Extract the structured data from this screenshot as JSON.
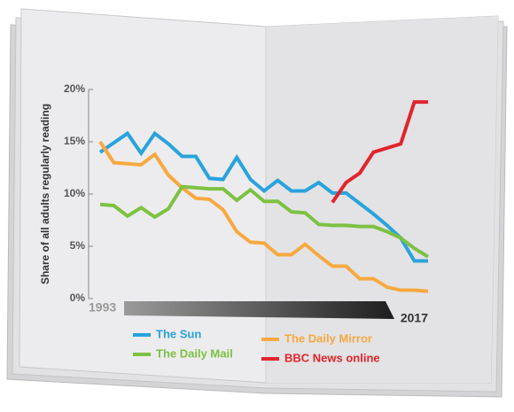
{
  "chart_data": {
    "type": "line",
    "y_label": "Share of all adults regularly reading",
    "x": [
      1993,
      1994,
      1995,
      1996,
      1997,
      1998,
      1999,
      2000,
      2001,
      2002,
      2003,
      2004,
      2005,
      2006,
      2007,
      2008,
      2009,
      2010,
      2011,
      2012,
      2013,
      2014,
      2015,
      2016,
      2017
    ],
    "xlim": [
      1993,
      2017
    ],
    "xticks": [
      1993,
      2017
    ],
    "ylim": [
      0,
      20
    ],
    "yticks": [
      {
        "value": 0,
        "label": "0%"
      },
      {
        "value": 5,
        "label": "5%"
      },
      {
        "value": 10,
        "label": "10%"
      },
      {
        "value": 15,
        "label": "15%"
      },
      {
        "value": 20,
        "label": "20%"
      }
    ],
    "series": [
      {
        "name": "The Sun",
        "color": "#29a3dc",
        "values": [
          14.0,
          14.9,
          15.8,
          13.9,
          15.8,
          14.8,
          13.6,
          13.6,
          11.5,
          11.4,
          13.5,
          11.4,
          10.3,
          11.3,
          10.3,
          10.3,
          11.1,
          10.1,
          10.1,
          9.1,
          8.1,
          7.0,
          5.8,
          3.6,
          3.6
        ]
      },
      {
        "name": "The Daily Mirror",
        "color": "#f7a940",
        "values": [
          15.0,
          13.0,
          12.9,
          12.8,
          13.8,
          11.8,
          10.6,
          9.6,
          9.5,
          8.5,
          6.4,
          5.4,
          5.3,
          4.2,
          4.2,
          5.2,
          4.1,
          3.1,
          3.1,
          1.9,
          1.9,
          1.1,
          0.8,
          0.8,
          0.7
        ]
      },
      {
        "name": "The Daily Mail",
        "color": "#7dc142",
        "values": [
          9.0,
          8.9,
          7.9,
          8.7,
          7.8,
          8.6,
          10.7,
          10.6,
          10.5,
          10.5,
          9.4,
          10.4,
          9.3,
          9.3,
          8.3,
          8.2,
          7.1,
          7.0,
          7.0,
          6.9,
          6.9,
          6.4,
          5.8,
          4.8,
          4.0
        ]
      },
      {
        "name": "BBC News online",
        "color": "#e3242b",
        "values": [
          null,
          null,
          null,
          null,
          null,
          null,
          null,
          null,
          null,
          null,
          null,
          null,
          null,
          null,
          null,
          null,
          null,
          9.2,
          11.1,
          12.0,
          14.0,
          14.4,
          14.8,
          18.8,
          18.8
        ]
      }
    ]
  }
}
